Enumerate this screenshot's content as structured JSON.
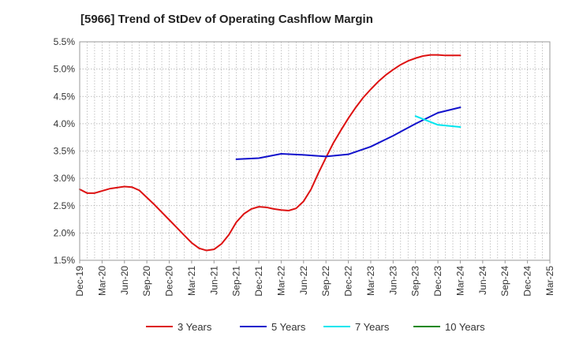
{
  "chart_data": {
    "type": "line",
    "title": "[5966]  Trend of StDev of Operating Cashflow Margin",
    "xlabel": "",
    "ylabel": "",
    "ylim": [
      1.5,
      5.5
    ],
    "y_ticks": [
      "5.5%",
      "5.0%",
      "4.5%",
      "4.0%",
      "3.5%",
      "3.0%",
      "2.5%",
      "2.0%",
      "1.5%"
    ],
    "y_tick_values": [
      5.5,
      5.0,
      4.5,
      4.0,
      3.5,
      3.0,
      2.5,
      2.0,
      1.5
    ],
    "categories": [
      "Dec-19",
      "Mar-20",
      "Jun-20",
      "Sep-20",
      "Dec-20",
      "Mar-21",
      "Jun-21",
      "Sep-21",
      "Dec-21",
      "Mar-22",
      "Jun-22",
      "Sep-22",
      "Dec-22",
      "Mar-23",
      "Jun-23",
      "Sep-23",
      "Dec-23",
      "Mar-24",
      "Jun-24",
      "Sep-24",
      "Dec-24",
      "Mar-25"
    ],
    "grid": true,
    "legend_position": "bottom",
    "series": [
      {
        "name": "3 Years",
        "color": "#dd1111",
        "x": [
          "2019-12",
          "2020-01",
          "2020-02",
          "2020-03",
          "2020-04",
          "2020-05",
          "2020-06",
          "2020-07",
          "2020-08",
          "2020-09",
          "2020-10",
          "2020-11",
          "2020-12",
          "2021-01",
          "2021-02",
          "2021-03",
          "2021-04",
          "2021-05",
          "2021-06",
          "2021-07",
          "2021-08",
          "2021-09",
          "2021-10",
          "2021-11",
          "2021-12",
          "2022-01",
          "2022-02",
          "2022-03",
          "2022-04",
          "2022-05",
          "2022-06",
          "2022-07",
          "2022-08",
          "2022-09",
          "2022-10",
          "2022-11",
          "2022-12",
          "2023-01",
          "2023-02",
          "2023-03",
          "2023-04",
          "2023-05",
          "2023-06",
          "2023-07",
          "2023-08",
          "2023-09",
          "2023-10",
          "2023-11",
          "2023-12",
          "2024-01",
          "2024-02",
          "2024-03"
        ],
        "values": [
          2.8,
          2.73,
          2.73,
          2.77,
          2.81,
          2.83,
          2.85,
          2.84,
          2.78,
          2.65,
          2.52,
          2.38,
          2.24,
          2.1,
          1.96,
          1.82,
          1.72,
          1.68,
          1.7,
          1.8,
          1.97,
          2.2,
          2.35,
          2.44,
          2.48,
          2.47,
          2.44,
          2.42,
          2.41,
          2.45,
          2.58,
          2.8,
          3.1,
          3.38,
          3.65,
          3.88,
          4.1,
          4.3,
          4.48,
          4.63,
          4.77,
          4.89,
          4.99,
          5.08,
          5.15,
          5.2,
          5.24,
          5.26,
          5.26,
          5.25,
          5.25,
          5.25
        ]
      },
      {
        "name": "5 Years",
        "color": "#1111cc",
        "x": [
          "2021-09",
          "2021-12",
          "2022-03",
          "2022-06",
          "2022-09",
          "2022-12",
          "2023-03",
          "2023-06",
          "2023-09",
          "2023-12",
          "2024-03"
        ],
        "values": [
          3.35,
          3.37,
          3.45,
          3.43,
          3.4,
          3.44,
          3.58,
          3.78,
          4.0,
          4.2,
          4.3
        ]
      },
      {
        "name": "7 Years",
        "color": "#00e5ee",
        "x": [
          "2023-09",
          "2023-12",
          "2024-03"
        ],
        "values": [
          4.14,
          3.98,
          3.94
        ]
      },
      {
        "name": "10 Years",
        "color": "#118811",
        "x": [],
        "values": []
      }
    ]
  }
}
